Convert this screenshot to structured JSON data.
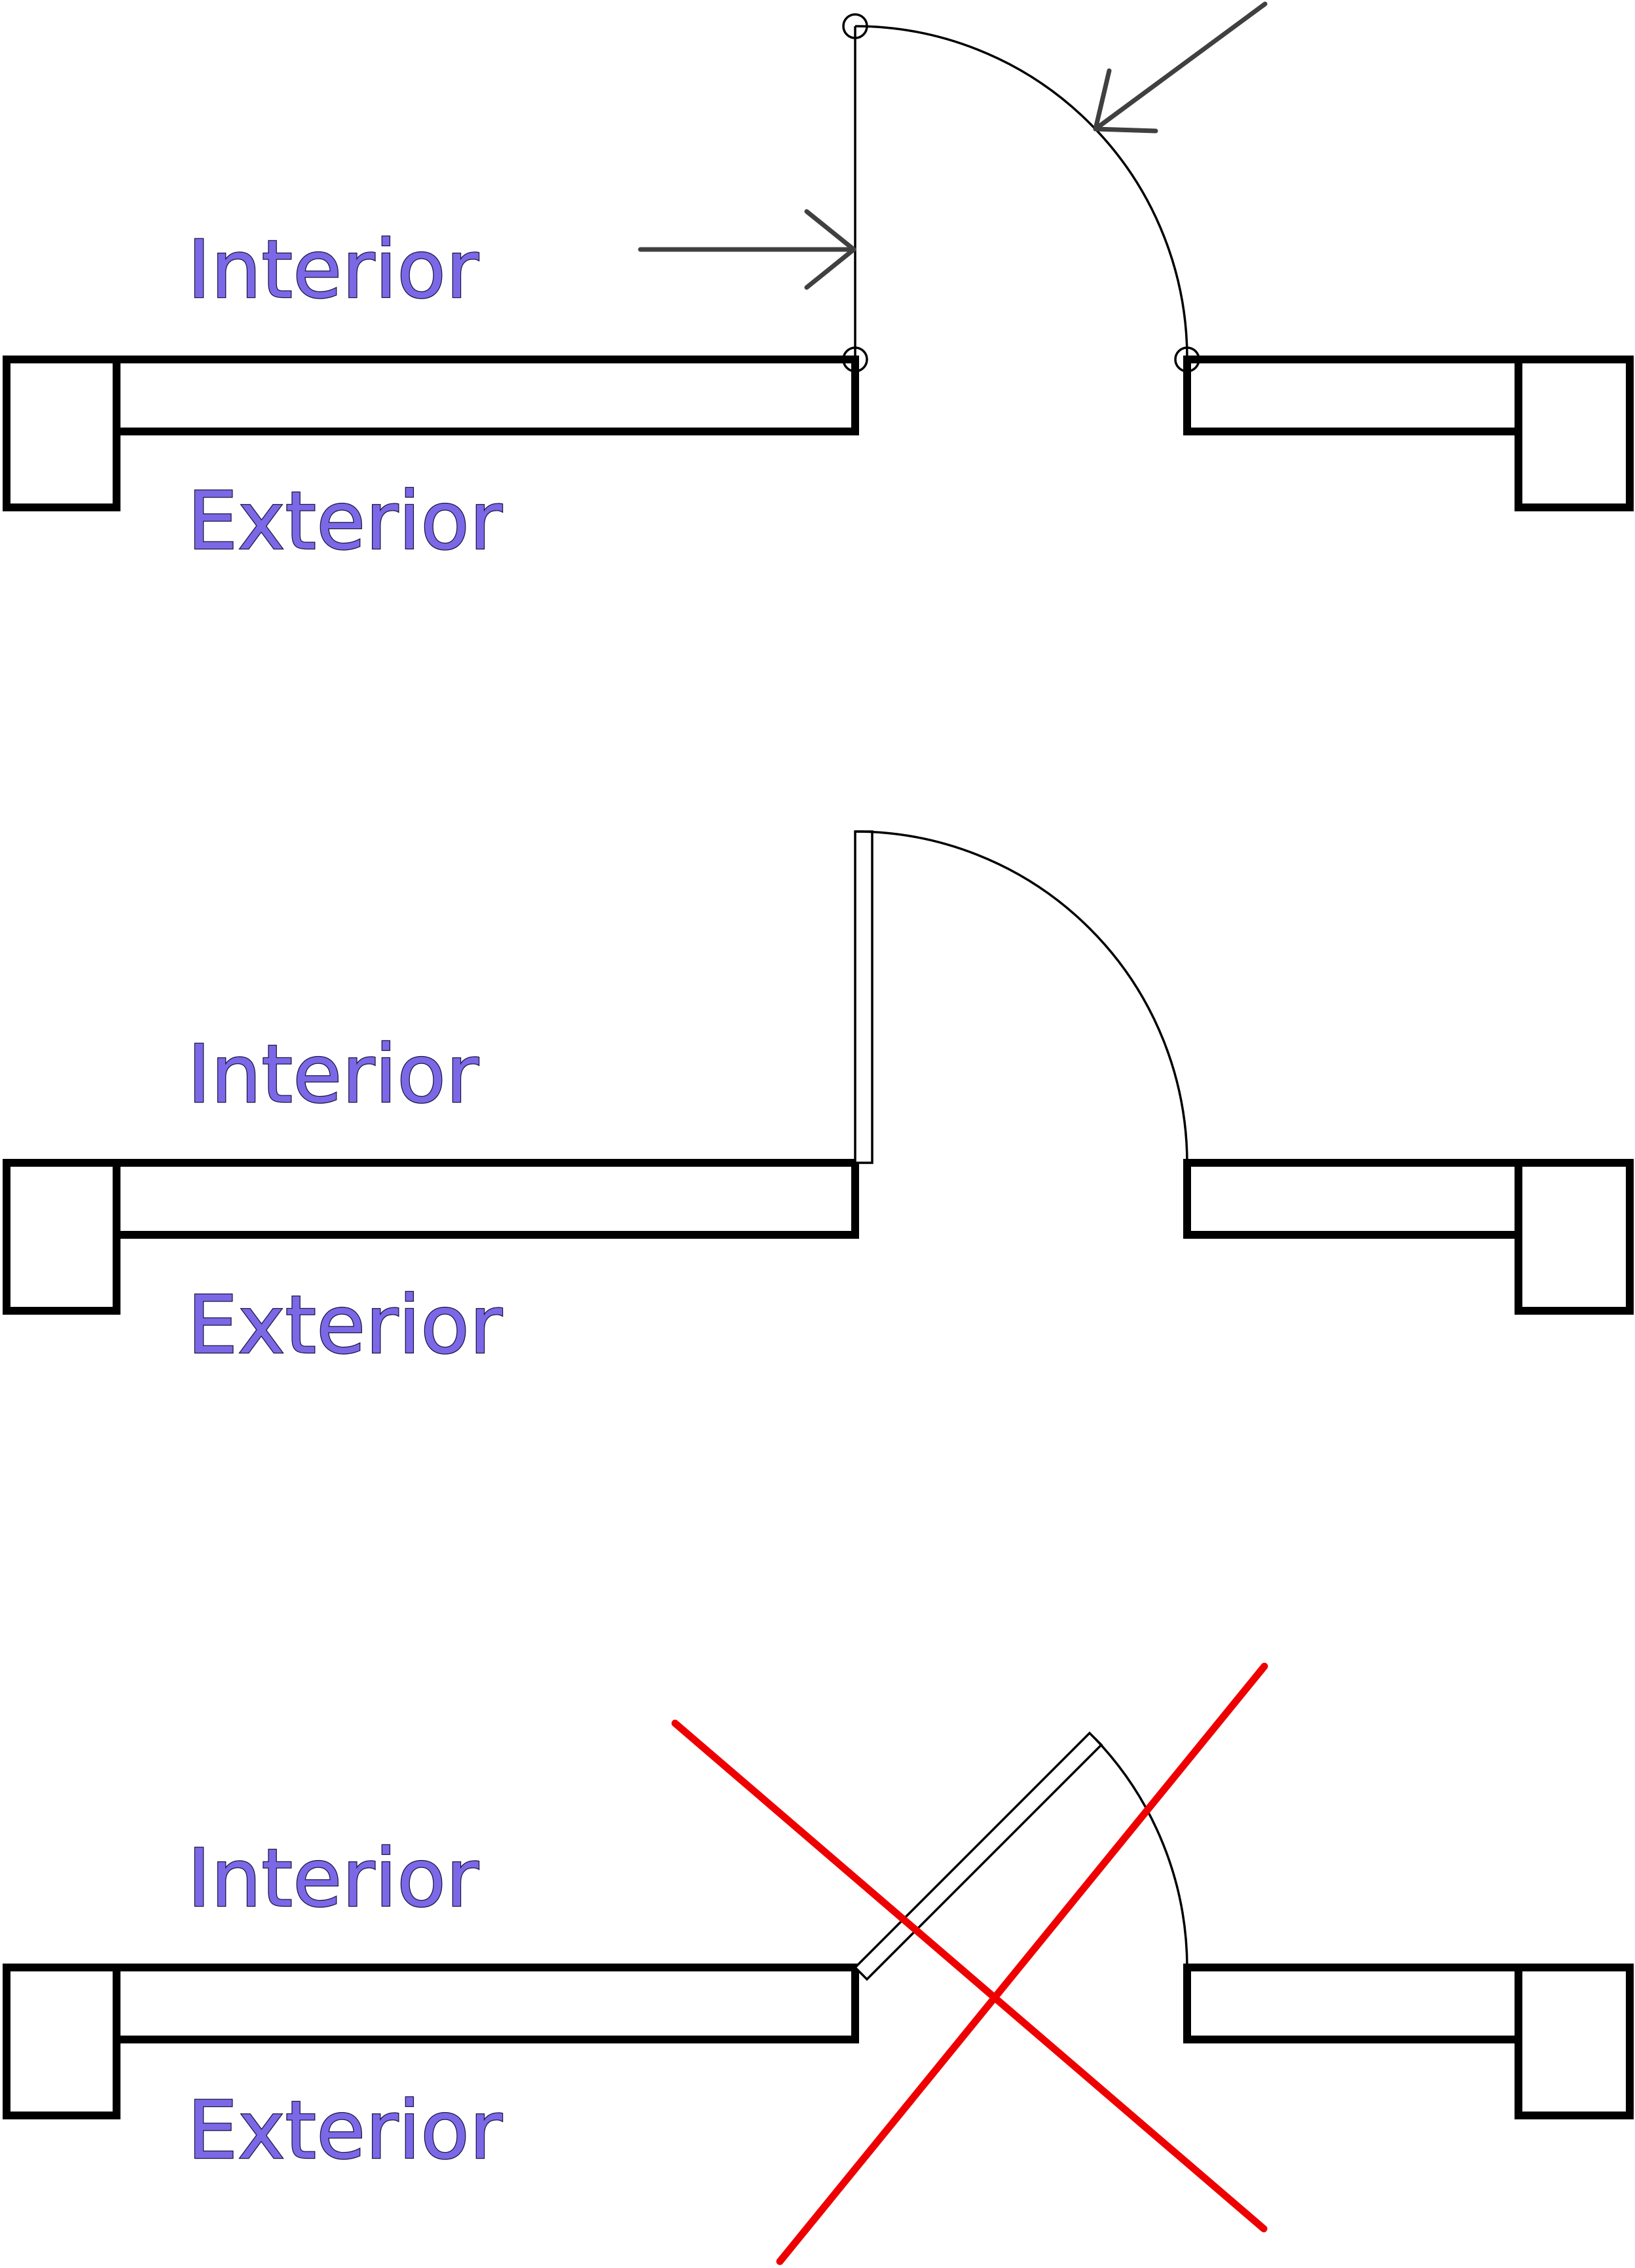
{
  "panels": [
    {
      "id": "construction",
      "interior_label": "Interior",
      "exterior_label": "Exterior",
      "door_style": "swing line with control points",
      "marked_incorrect": false
    },
    {
      "id": "correct",
      "interior_label": "Interior",
      "exterior_label": "Exterior",
      "door_style": "door leaf opened 90 degrees",
      "marked_incorrect": false
    },
    {
      "id": "incorrect",
      "interior_label": "Interior",
      "exterior_label": "Exterior",
      "door_style": "door leaf opened 45 degrees",
      "marked_incorrect": true
    }
  ],
  "colors": {
    "label_fill": "#7b68e6",
    "label_outline": "#1a1340",
    "wall_stroke": "#000000",
    "arrow_stroke": "#404040",
    "cross": "#ee0000"
  }
}
